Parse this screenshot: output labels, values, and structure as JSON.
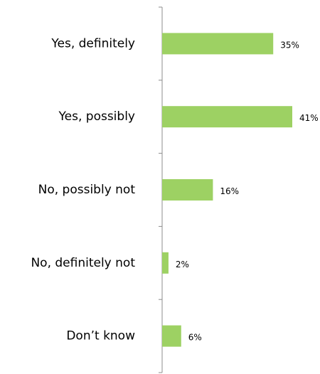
{
  "chart_data": {
    "type": "bar",
    "orientation": "horizontal",
    "categories": [
      "Yes, definitely",
      "Yes, possibly",
      "No, possibly not",
      "No, definitely not",
      "Don’t know"
    ],
    "values": [
      35,
      41,
      16,
      2,
      6
    ],
    "value_labels": [
      "35%",
      "41%",
      "16%",
      "2%",
      "6%"
    ],
    "unit": "%",
    "xlim": [
      0,
      41
    ],
    "title": "",
    "xlabel": "",
    "ylabel": "",
    "grid": false,
    "legend": "none",
    "colors": {
      "bar": "#9dd163",
      "axis": "#8c8c8c",
      "text": "#000000"
    }
  }
}
